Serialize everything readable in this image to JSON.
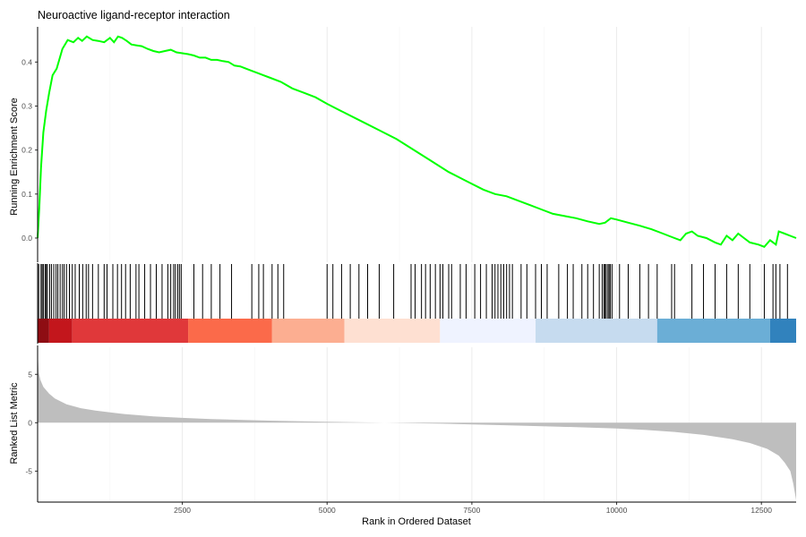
{
  "chart_data": [
    {
      "panel": "running-enrichment-score",
      "type": "line",
      "title": "Neuroactive ligand-receptor interaction",
      "ylabel": "Running Enrichment Score",
      "xlim": [
        1,
        13100
      ],
      "ylim": [
        -0.055,
        0.48
      ],
      "y_ticks": [
        0.0,
        0.1,
        0.2,
        0.3,
        0.4
      ],
      "y_tick_labels": [
        "0.0",
        "0.1",
        "0.2",
        "0.3",
        "0.4"
      ],
      "grid": true,
      "series": [
        {
          "color": "#00ff00",
          "x": [
            1,
            30,
            60,
            100,
            150,
            200,
            260,
            330,
            430,
            520,
            620,
            700,
            770,
            850,
            950,
            1050,
            1150,
            1250,
            1320,
            1390,
            1460,
            1540,
            1620,
            1700,
            1800,
            1900,
            2000,
            2100,
            2200,
            2300,
            2400,
            2500,
            2600,
            2700,
            2800,
            2900,
            3000,
            3100,
            3200,
            3300,
            3400,
            3500,
            3600,
            3700,
            3800,
            3900,
            4000,
            4200,
            4400,
            4600,
            4800,
            5000,
            5300,
            5600,
            5900,
            6200,
            6500,
            6800,
            7100,
            7400,
            7700,
            7900,
            8100,
            8300,
            8500,
            8700,
            8900,
            9100,
            9300,
            9500,
            9700,
            9800,
            9900,
            10000,
            10200,
            10400,
            10600,
            10800,
            10900,
            11000,
            11100,
            11200,
            11300,
            11400,
            11550,
            11700,
            11800,
            11900,
            12000,
            12100,
            12200,
            12300,
            12450,
            12550,
            12650,
            12750,
            12800,
            12900,
            13000,
            13100
          ],
          "y": [
            0.0,
            0.07,
            0.16,
            0.24,
            0.29,
            0.33,
            0.37,
            0.385,
            0.43,
            0.45,
            0.445,
            0.455,
            0.448,
            0.458,
            0.45,
            0.448,
            0.445,
            0.455,
            0.445,
            0.458,
            0.455,
            0.448,
            0.44,
            0.438,
            0.436,
            0.43,
            0.425,
            0.422,
            0.425,
            0.428,
            0.422,
            0.42,
            0.418,
            0.415,
            0.41,
            0.41,
            0.405,
            0.405,
            0.402,
            0.4,
            0.392,
            0.39,
            0.385,
            0.38,
            0.375,
            0.37,
            0.365,
            0.355,
            0.34,
            0.33,
            0.32,
            0.305,
            0.285,
            0.265,
            0.245,
            0.225,
            0.2,
            0.175,
            0.15,
            0.13,
            0.11,
            0.1,
            0.095,
            0.085,
            0.075,
            0.065,
            0.055,
            0.05,
            0.045,
            0.038,
            0.032,
            0.035,
            0.045,
            0.042,
            0.035,
            0.028,
            0.02,
            0.01,
            0.005,
            0.0,
            -0.005,
            0.01,
            0.015,
            0.005,
            0.0,
            -0.01,
            -0.015,
            0.005,
            -0.005,
            0.01,
            0.0,
            -0.01,
            -0.015,
            -0.02,
            -0.005,
            -0.015,
            0.015,
            0.01,
            0.005,
            0.0
          ]
        }
      ]
    },
    {
      "panel": "gene-set-hits-and-rank-heatmap",
      "type": "heatmap",
      "xlim": [
        1,
        13100
      ],
      "hit_positions": [
        20,
        60,
        80,
        100,
        130,
        150,
        170,
        210,
        240,
        280,
        320,
        350,
        390,
        430,
        460,
        500,
        550,
        600,
        650,
        720,
        780,
        840,
        880,
        950,
        1050,
        1150,
        1200,
        1300,
        1380,
        1450,
        1520,
        1600,
        1700,
        1750,
        1850,
        1950,
        2050,
        2150,
        2250,
        2300,
        2350,
        2380,
        2420,
        2450,
        2480,
        2700,
        2850,
        3000,
        3150,
        3350,
        3700,
        3820,
        3900,
        4050,
        4150,
        4250,
        5000,
        5100,
        5250,
        5400,
        5550,
        5700,
        5900,
        6150,
        6450,
        6520,
        6630,
        6700,
        6780,
        6870,
        6950,
        7000,
        7100,
        7150,
        7300,
        7400,
        7550,
        7650,
        7750,
        7850,
        7900,
        7950,
        8000,
        8050,
        8100,
        8150,
        8200,
        8350,
        8450,
        8600,
        8700,
        8800,
        9000,
        9150,
        9250,
        9400,
        9500,
        9600,
        9700,
        9750,
        9780,
        9800,
        9820,
        9850,
        9870,
        9890,
        9920,
        10050,
        10200,
        10400,
        10550,
        10700,
        10950,
        11000,
        11300,
        11500,
        11700,
        11900,
        12100,
        12300,
        12550,
        12700,
        12750,
        12820,
        12950
      ],
      "color_bands": [
        {
          "x0": 1,
          "x1": 200,
          "color": "#8e0d13"
        },
        {
          "x0": 200,
          "x1": 600,
          "color": "#c3161c"
        },
        {
          "x0": 600,
          "x1": 2600,
          "color": "#e0383a"
        },
        {
          "x0": 2600,
          "x1": 4050,
          "color": "#fb6a4a"
        },
        {
          "x0": 4050,
          "x1": 5300,
          "color": "#fcae91"
        },
        {
          "x0": 5300,
          "x1": 6950,
          "color": "#fee0d2"
        },
        {
          "x0": 6950,
          "x1": 8600,
          "color": "#eff3ff"
        },
        {
          "x0": 8600,
          "x1": 10700,
          "color": "#c6dbef"
        },
        {
          "x0": 10700,
          "x1": 12650,
          "color": "#6baed6"
        },
        {
          "x0": 12650,
          "x1": 13100,
          "color": "#3182bd"
        }
      ]
    },
    {
      "panel": "ranked-list-metric",
      "type": "area",
      "xlabel": "Rank in Ordered Dataset",
      "ylabel": "Ranked List Metric",
      "xlim": [
        1,
        13100
      ],
      "ylim": [
        -8.2,
        7.8
      ],
      "x_ticks": [
        2500,
        5000,
        7500,
        10000,
        12500
      ],
      "x_tick_labels": [
        "2500",
        "5000",
        "7500",
        "10000",
        "12500"
      ],
      "y_ticks": [
        5,
        0,
        -5
      ],
      "y_tick_labels": [
        "5",
        "0",
        "-5"
      ],
      "grid": true,
      "fill_color": "#bebebe",
      "x": [
        1,
        20,
        50,
        100,
        200,
        300,
        500,
        750,
        1000,
        1500,
        2000,
        2500,
        3000,
        4000,
        5000,
        6000,
        7000,
        8000,
        9000,
        10000,
        10500,
        11000,
        11500,
        12000,
        12300,
        12600,
        12800,
        12900,
        13000,
        13050,
        13100
      ],
      "y": [
        7.5,
        5.2,
        4.4,
        3.7,
        3.0,
        2.5,
        1.9,
        1.5,
        1.25,
        0.9,
        0.65,
        0.5,
        0.38,
        0.22,
        0.1,
        0.0,
        -0.1,
        -0.25,
        -0.4,
        -0.6,
        -0.75,
        -0.95,
        -1.25,
        -1.7,
        -2.1,
        -2.7,
        -3.4,
        -4.1,
        -5.0,
        -6.3,
        -8.0
      ]
    }
  ]
}
